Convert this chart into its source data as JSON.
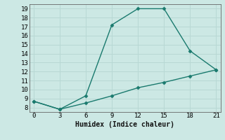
{
  "xlabel": "Humidex (Indice chaleur)",
  "background_color": "#cce8e4",
  "grid_color": "#b8d8d4",
  "line_color": "#1a7a6e",
  "line1_x": [
    0,
    3,
    6,
    9,
    12,
    15,
    18,
    21
  ],
  "line1_y": [
    8.7,
    7.8,
    9.3,
    17.2,
    19.0,
    19.0,
    14.3,
    12.2
  ],
  "line2_x": [
    0,
    3,
    6,
    9,
    12,
    15,
    18,
    21
  ],
  "line2_y": [
    8.7,
    7.8,
    8.5,
    9.3,
    10.2,
    10.8,
    11.5,
    12.2
  ],
  "xlim": [
    -0.5,
    21.5
  ],
  "ylim": [
    7.5,
    19.5
  ],
  "xticks": [
    0,
    3,
    6,
    9,
    12,
    15,
    18,
    21
  ],
  "yticks": [
    8,
    9,
    10,
    11,
    12,
    13,
    14,
    15,
    16,
    17,
    18,
    19
  ],
  "marker": "D",
  "markersize": 2.5,
  "linewidth": 1.0,
  "xlabel_fontsize": 7,
  "tick_fontsize": 6.5
}
